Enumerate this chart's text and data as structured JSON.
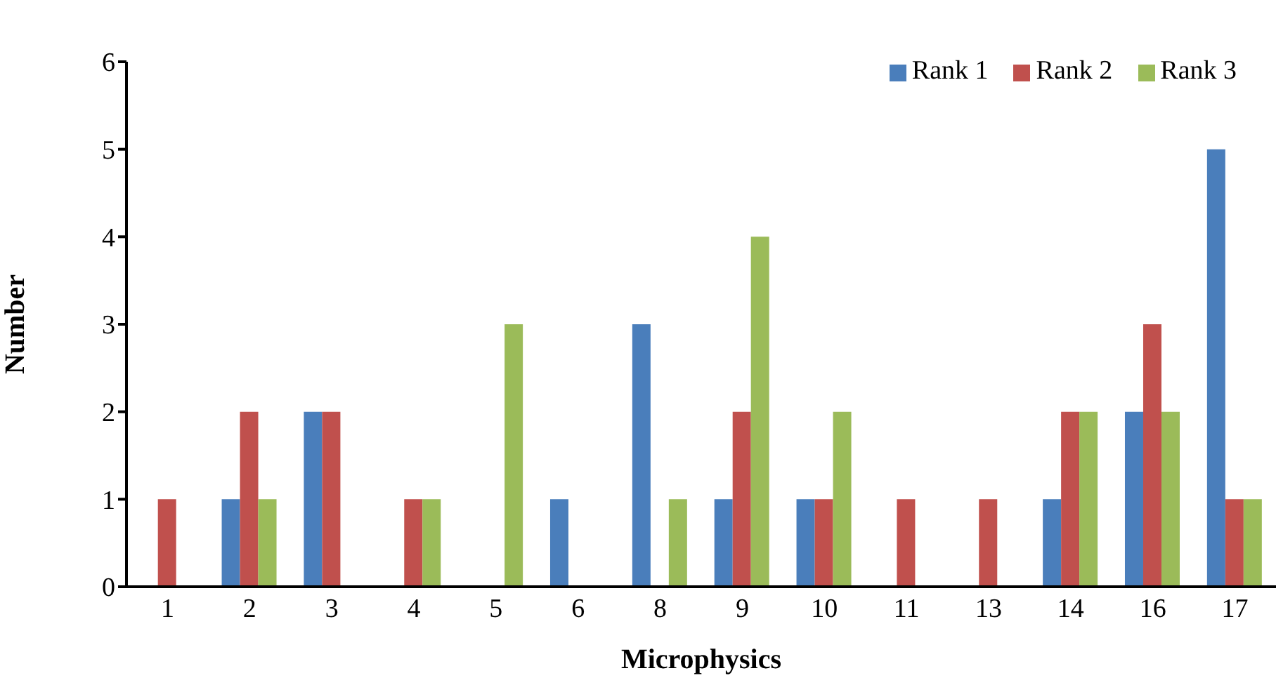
{
  "chart_data": {
    "type": "bar",
    "xlabel": "Microphysics",
    "ylabel": "Number",
    "categories": [
      "1",
      "2",
      "3",
      "4",
      "5",
      "6",
      "8",
      "9",
      "10",
      "11",
      "13",
      "14",
      "16",
      "17"
    ],
    "series": [
      {
        "name": "Rank 1",
        "color": "#4a7ebb",
        "values": [
          0,
          1,
          2,
          0,
          0,
          1,
          3,
          1,
          1,
          0,
          0,
          1,
          2,
          5
        ]
      },
      {
        "name": "Rank 2",
        "color": "#c0504d",
        "values": [
          1,
          2,
          2,
          1,
          0,
          0,
          0,
          2,
          1,
          1,
          1,
          2,
          3,
          1
        ]
      },
      {
        "name": "Rank 3",
        "color": "#9bbb59",
        "values": [
          0,
          1,
          0,
          1,
          3,
          0,
          1,
          4,
          2,
          0,
          0,
          2,
          2,
          1
        ]
      }
    ],
    "ylim": [
      0,
      6
    ],
    "yticks": [
      0,
      1,
      2,
      3,
      4,
      5,
      6
    ],
    "grid": false,
    "legend": "top right"
  }
}
